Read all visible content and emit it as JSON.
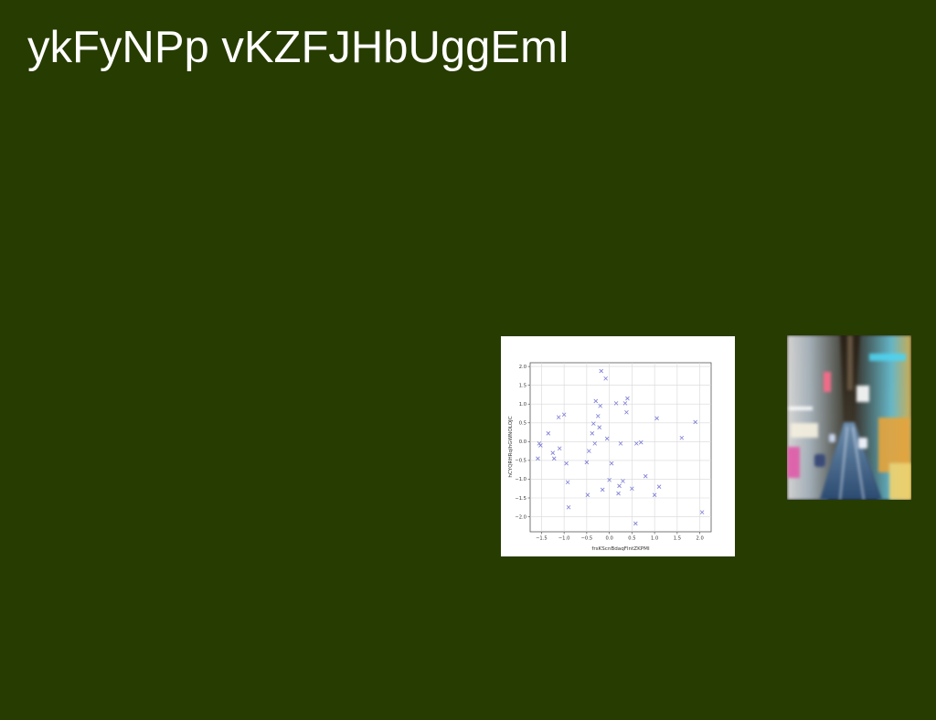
{
  "page": {
    "title": "ykFyNPp vKZFJHbUggEmI",
    "background_color": "#273c01",
    "title_color": "#ffffff"
  },
  "chart_data": {
    "type": "scatter",
    "xlabel": "frsKScnBdaqFlntZKPMI",
    "ylabel": "hCYQRHRqIhGWNOLOJC",
    "xlim": [
      -1.75,
      2.25
    ],
    "ylim": [
      -2.4,
      2.1
    ],
    "x_ticks": [
      "−1.5",
      "−1.0",
      "−0.5",
      "0.0",
      "0.5",
      "1.0",
      "1.5",
      "2.0"
    ],
    "y_ticks": [
      "−2.0",
      "−1.5",
      "−1.0",
      "−0.5",
      "0.0",
      "0.5",
      "1.0",
      "1.5",
      "2.0"
    ],
    "grid": true,
    "marker": "x",
    "marker_color": "#7b7bd6",
    "series": [
      {
        "x": [
          -1.55,
          -1.52,
          -1.58,
          -1.35,
          -1.25,
          -1.22,
          -1.12,
          -1.1,
          -1.0,
          -0.95,
          -0.92,
          -0.9,
          -0.5,
          -0.48,
          -0.45,
          -0.38,
          -0.35,
          -0.32,
          -0.3,
          -0.25,
          -0.22,
          -0.2,
          -0.18,
          -0.15,
          -0.08,
          -0.05,
          0.0,
          0.05,
          0.15,
          0.2,
          0.22,
          0.25,
          0.3,
          0.35,
          0.38,
          0.4,
          0.5,
          0.58,
          0.6,
          0.7,
          0.8,
          1.0,
          1.05,
          1.1,
          1.6,
          1.9,
          2.05
        ],
        "y": [
          -0.05,
          -0.1,
          -0.45,
          0.22,
          -0.3,
          -0.45,
          0.65,
          -0.18,
          0.72,
          -0.58,
          -1.08,
          -1.75,
          -0.55,
          -1.42,
          -0.25,
          0.22,
          0.48,
          -0.05,
          1.08,
          0.68,
          0.38,
          0.95,
          1.88,
          -1.28,
          1.68,
          0.08,
          -1.02,
          -0.58,
          1.02,
          -1.38,
          -1.18,
          -0.05,
          -1.05,
          1.02,
          0.78,
          1.15,
          -1.25,
          -2.18,
          -0.05,
          -0.02,
          -0.92,
          -1.42,
          0.62,
          -1.2,
          0.1,
          0.52,
          -1.88
        ]
      }
    ]
  },
  "photo": {
    "icon": "city-street-motion-blur-photo"
  }
}
